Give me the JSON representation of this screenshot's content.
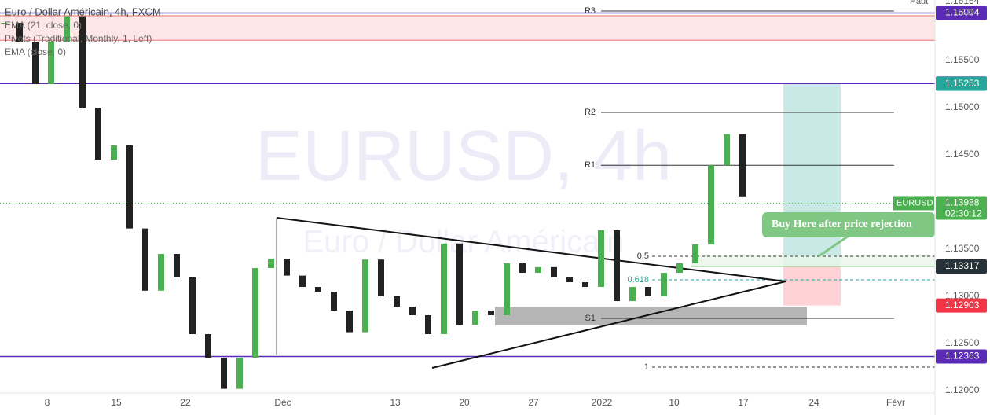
{
  "header": {
    "symbol": "Euro / Dollar Américain, 4h, FXCM",
    "indicators": [
      "EMA (21, close, 0)",
      "Pivots (Traditional, Monthly, 1, Left)",
      "EMA (close, 0)"
    ]
  },
  "watermark": {
    "ticker": "EURUSD, 4h",
    "name": "Euro / Dollar Américain"
  },
  "chart_data": {
    "type": "candlestick",
    "closes": [
      1.159,
      1.157,
      1.1525,
      1.157,
      1.1597,
      1.15,
      1.1445,
      1.146,
      1.1372,
      1.1306,
      1.1345,
      1.132,
      1.126,
      1.1235,
      1.1202,
      1.1235,
      1.133,
      1.134,
      1.1322,
      1.131,
      1.1305,
      1.1285,
      1.1262,
      1.1339,
      1.13,
      1.1289,
      1.128,
      1.126,
      1.1356,
      1.127,
      1.1285,
      1.128,
      1.1335,
      1.1325,
      1.1331,
      1.132,
      1.1315,
      1.131,
      1.137,
      1.1295,
      1.131,
      1.13,
      1.1325,
      1.1335,
      1.1355,
      1.1439,
      1.1472,
      1.1406
    ],
    "up_color": "#4caf50",
    "down_color": "#222222",
    "ylim": [
      1.11975,
      1.16142
    ],
    "yticks": [
      {
        "value": 1.155,
        "label": "1.15500"
      },
      {
        "value": 1.15,
        "label": "1.15000"
      },
      {
        "value": 1.145,
        "label": "1.14500"
      },
      {
        "value": 1.135,
        "label": "1.13500"
      },
      {
        "value": 1.13,
        "label": "1.13000"
      },
      {
        "value": 1.125,
        "label": "1.12500"
      },
      {
        "value": 1.12,
        "label": "1.12000"
      }
    ],
    "x_labels": [
      "8",
      "15",
      "22",
      "Déc",
      "13",
      "20",
      "27",
      "2022",
      "10",
      "17",
      "24",
      "Févr"
    ],
    "high": {
      "name": "Haut",
      "value": 1.16164
    },
    "currency": "USD",
    "levels": [
      {
        "value": 1.16004,
        "color": "#5b2bb5"
      },
      {
        "value": 1.15257,
        "color": "#5b2bb5"
      },
      {
        "value": 1.12363,
        "color": "#5b2bb5"
      }
    ],
    "current": {
      "name": "EURUSD",
      "value": 1.13988,
      "countdown": "02:30:12",
      "color": "#4caf50"
    },
    "pivots": [
      {
        "name": "R3",
        "value": 1.16025
      },
      {
        "name": "R2",
        "value": 1.1495
      },
      {
        "name": "R1",
        "value": 1.1439
      },
      {
        "name": "S1",
        "value": 1.12767
      }
    ],
    "fib": [
      {
        "name": "0.5",
        "value": 1.13425
      },
      {
        "name": "0.618",
        "value": 1.13175
      },
      {
        "name": "1",
        "value": 1.1225
      }
    ],
    "position": {
      "target": 1.15253,
      "entry": 1.13317,
      "stop": 1.12903
    },
    "supply_zone": [
      1.15715,
      1.15975
    ],
    "demand_zone": [
      1.12695,
      1.1289
    ],
    "annotation": "Buy Here after price rejection"
  }
}
